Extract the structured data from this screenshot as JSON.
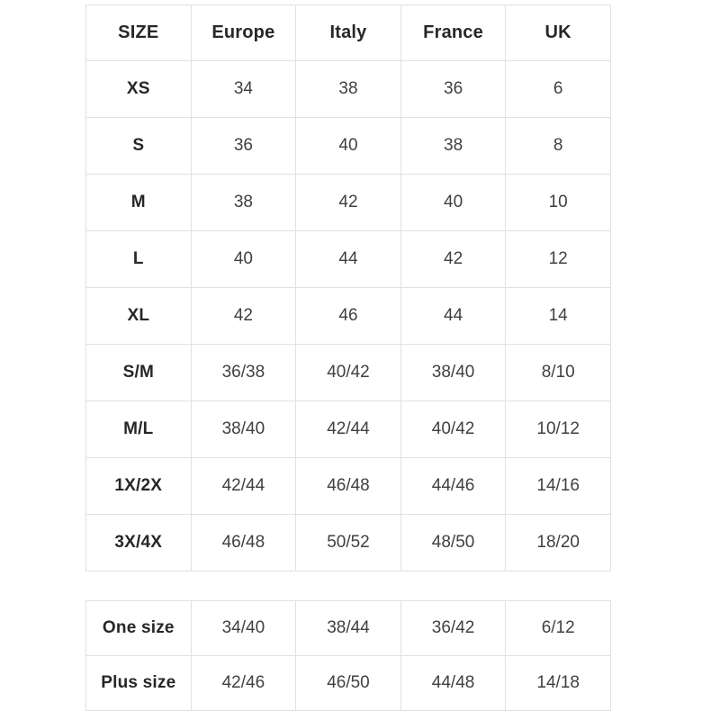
{
  "colors": {
    "background": "#ffffff",
    "border": "#e1e1e1",
    "header_text": "#26262b",
    "value_text": "#3f3f46"
  },
  "chart_data": [
    {
      "type": "table",
      "columns": [
        "SIZE",
        "Europe",
        "Italy",
        "France",
        "UK"
      ],
      "rows": [
        {
          "label": "XS",
          "values": [
            "34",
            "38",
            "36",
            "6"
          ]
        },
        {
          "label": "S",
          "values": [
            "36",
            "40",
            "38",
            "8"
          ]
        },
        {
          "label": "M",
          "values": [
            "38",
            "42",
            "40",
            "10"
          ]
        },
        {
          "label": "L",
          "values": [
            "40",
            "44",
            "42",
            "12"
          ]
        },
        {
          "label": "XL",
          "values": [
            "42",
            "46",
            "44",
            "14"
          ]
        },
        {
          "label": "S/M",
          "values": [
            "36/38",
            "40/42",
            "38/40",
            "8/10"
          ]
        },
        {
          "label": "M/L",
          "values": [
            "38/40",
            "42/44",
            "40/42",
            "10/12"
          ]
        },
        {
          "label": "1X/2X",
          "values": [
            "42/44",
            "46/48",
            "44/46",
            "14/16"
          ]
        },
        {
          "label": "3X/4X",
          "values": [
            "46/48",
            "50/52",
            "48/50",
            "18/20"
          ]
        }
      ]
    },
    {
      "type": "table",
      "columns": [],
      "rows": [
        {
          "label": "One size",
          "values": [
            "34/40",
            "38/44",
            "36/42",
            "6/12"
          ]
        },
        {
          "label": "Plus size",
          "values": [
            "42/46",
            "46/50",
            "44/48",
            "14/18"
          ]
        }
      ]
    }
  ]
}
